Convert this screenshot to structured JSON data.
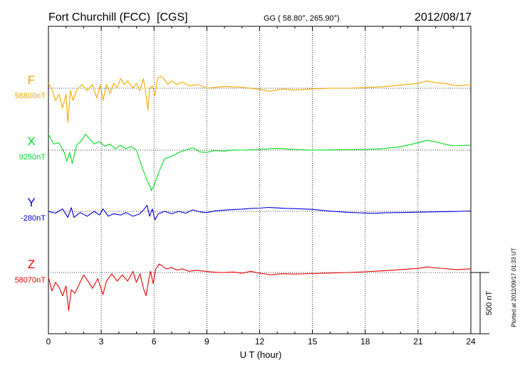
{
  "header": {
    "station": "Fort Churchill (FCC)  [CGS]",
    "coords": "GG ( 58.80°, 265.90°)",
    "date": "2012/08/17"
  },
  "plotted_note": "Plotted at 2012/09/17 01:33 UT",
  "chart_data": {
    "type": "line",
    "xlabel": "U T (hour)",
    "xlim": [
      0,
      24
    ],
    "x_ticks": [
      0,
      3,
      6,
      9,
      12,
      15,
      18,
      21,
      24
    ],
    "x_tick_labels": [
      "0",
      "3",
      "6",
      "9",
      "12",
      "15",
      "18",
      "21",
      "24"
    ],
    "scale_bar": {
      "value": 500,
      "label": "500 nT"
    },
    "grid": true,
    "series": [
      {
        "name": "F",
        "baseline_label": "58800nT",
        "baseline": 58800,
        "color": "#f5a800",
        "points": [
          [
            0,
            58840
          ],
          [
            0.2,
            58790
          ],
          [
            0.4,
            58700
          ],
          [
            0.6,
            58750
          ],
          [
            0.8,
            58640
          ],
          [
            1.0,
            58750
          ],
          [
            1.1,
            58520
          ],
          [
            1.25,
            58780
          ],
          [
            1.4,
            58700
          ],
          [
            1.6,
            58780
          ],
          [
            1.9,
            58830
          ],
          [
            2.2,
            58780
          ],
          [
            2.5,
            58830
          ],
          [
            2.75,
            58720
          ],
          [
            2.95,
            58830
          ],
          [
            3.1,
            58700
          ],
          [
            3.3,
            58830
          ],
          [
            3.5,
            58760
          ],
          [
            3.7,
            58840
          ],
          [
            3.9,
            58800
          ],
          [
            4.1,
            58880
          ],
          [
            4.3,
            58830
          ],
          [
            4.5,
            58860
          ],
          [
            4.8,
            58800
          ],
          [
            5.0,
            58840
          ],
          [
            5.2,
            58780
          ],
          [
            5.4,
            58880
          ],
          [
            5.55,
            58740
          ],
          [
            5.65,
            58620
          ],
          [
            5.75,
            58800
          ],
          [
            5.9,
            58820
          ],
          [
            6.05,
            58740
          ],
          [
            6.2,
            58880
          ],
          [
            6.4,
            58900
          ],
          [
            6.6,
            58870
          ],
          [
            6.8,
            58830
          ],
          [
            7.0,
            58860
          ],
          [
            7.3,
            58830
          ],
          [
            7.6,
            58850
          ],
          [
            8.0,
            58820
          ],
          [
            8.5,
            58830
          ],
          [
            9.0,
            58800
          ],
          [
            10.0,
            58815
          ],
          [
            11.0,
            58808
          ],
          [
            12.0,
            58790
          ],
          [
            12.6,
            58775
          ],
          [
            13.3,
            58795
          ],
          [
            14.0,
            58785
          ],
          [
            15.0,
            58795
          ],
          [
            16.0,
            58800
          ],
          [
            17.0,
            58800
          ],
          [
            18.0,
            58805
          ],
          [
            19.0,
            58812
          ],
          [
            20.0,
            58825
          ],
          [
            21.0,
            58840
          ],
          [
            21.5,
            58860
          ],
          [
            22.0,
            58845
          ],
          [
            22.5,
            58840
          ],
          [
            23.2,
            58820
          ],
          [
            24.0,
            58828
          ]
        ]
      },
      {
        "name": "X",
        "baseline_label": "9250nT",
        "baseline": 9250,
        "color": "#00dd22",
        "points": [
          [
            0,
            9380
          ],
          [
            0.3,
            9300
          ],
          [
            0.6,
            9310
          ],
          [
            0.9,
            9230
          ],
          [
            1.05,
            9160
          ],
          [
            1.2,
            9230
          ],
          [
            1.35,
            9140
          ],
          [
            1.6,
            9290
          ],
          [
            1.9,
            9330
          ],
          [
            2.1,
            9380
          ],
          [
            2.3,
            9350
          ],
          [
            2.6,
            9300
          ],
          [
            2.9,
            9320
          ],
          [
            3.2,
            9280
          ],
          [
            3.5,
            9300
          ],
          [
            3.8,
            9260
          ],
          [
            4.1,
            9290
          ],
          [
            4.4,
            9260
          ],
          [
            4.7,
            9280
          ],
          [
            5.0,
            9250
          ],
          [
            5.2,
            9160
          ],
          [
            5.45,
            9060
          ],
          [
            5.6,
            9000
          ],
          [
            5.75,
            8960
          ],
          [
            5.85,
            8920
          ],
          [
            6.0,
            8960
          ],
          [
            6.1,
            9000
          ],
          [
            6.3,
            9080
          ],
          [
            6.6,
            9180
          ],
          [
            7.0,
            9200
          ],
          [
            7.4,
            9230
          ],
          [
            7.8,
            9250
          ],
          [
            8.2,
            9270
          ],
          [
            8.6,
            9235
          ],
          [
            9.0,
            9232
          ],
          [
            9.5,
            9248
          ],
          [
            10.0,
            9242
          ],
          [
            10.5,
            9252
          ],
          [
            11.0,
            9250
          ],
          [
            12.0,
            9256
          ],
          [
            13.0,
            9265
          ],
          [
            14.0,
            9255
          ],
          [
            15.0,
            9250
          ],
          [
            16.0,
            9252
          ],
          [
            17.0,
            9254
          ],
          [
            18.0,
            9256
          ],
          [
            19.0,
            9262
          ],
          [
            20.0,
            9278
          ],
          [
            21.0,
            9310
          ],
          [
            21.5,
            9330
          ],
          [
            22.0,
            9318
          ],
          [
            22.5,
            9300
          ],
          [
            23.0,
            9285
          ],
          [
            24.0,
            9290
          ]
        ]
      },
      {
        "name": "Y",
        "baseline_label": "-280nT",
        "baseline": -280,
        "color": "#0000dd",
        "points": [
          [
            0,
            -280
          ],
          [
            0.4,
            -295
          ],
          [
            0.8,
            -260
          ],
          [
            1.1,
            -330
          ],
          [
            1.3,
            -250
          ],
          [
            1.45,
            -330
          ],
          [
            1.8,
            -290
          ],
          [
            2.2,
            -320
          ],
          [
            2.6,
            -280
          ],
          [
            2.9,
            -310
          ],
          [
            3.1,
            -260
          ],
          [
            3.4,
            -320
          ],
          [
            3.7,
            -300
          ],
          [
            4.1,
            -310
          ],
          [
            4.4,
            -290
          ],
          [
            4.8,
            -320
          ],
          [
            5.2,
            -300
          ],
          [
            5.45,
            -260
          ],
          [
            5.6,
            -230
          ],
          [
            5.75,
            -320
          ],
          [
            5.9,
            -260
          ],
          [
            6.05,
            -350
          ],
          [
            6.25,
            -300
          ],
          [
            6.6,
            -280
          ],
          [
            7.0,
            -300
          ],
          [
            7.4,
            -280
          ],
          [
            7.8,
            -295
          ],
          [
            8.2,
            -268
          ],
          [
            8.6,
            -285
          ],
          [
            9.0,
            -290
          ],
          [
            9.5,
            -276
          ],
          [
            10.0,
            -270
          ],
          [
            10.5,
            -265
          ],
          [
            11.0,
            -262
          ],
          [
            11.5,
            -256
          ],
          [
            12.0,
            -254
          ],
          [
            12.5,
            -248
          ],
          [
            13.0,
            -252
          ],
          [
            13.5,
            -256
          ],
          [
            14.0,
            -258
          ],
          [
            15.0,
            -264
          ],
          [
            15.5,
            -272
          ],
          [
            16.0,
            -278
          ],
          [
            17.0,
            -288
          ],
          [
            18.0,
            -294
          ],
          [
            18.5,
            -296
          ],
          [
            19.0,
            -292
          ],
          [
            20.0,
            -290
          ],
          [
            21.0,
            -287
          ],
          [
            22.0,
            -284
          ],
          [
            23.0,
            -282
          ],
          [
            24.0,
            -277
          ]
        ]
      },
      {
        "name": "Z",
        "baseline_label": "58070nT",
        "baseline": 58070,
        "color": "#ee0000",
        "points": [
          [
            0,
            58030
          ],
          [
            0.2,
            57920
          ],
          [
            0.4,
            57990
          ],
          [
            0.6,
            57950
          ],
          [
            0.8,
            57880
          ],
          [
            1.0,
            57960
          ],
          [
            1.15,
            57760
          ],
          [
            1.3,
            57930
          ],
          [
            1.5,
            57900
          ],
          [
            1.8,
            57990
          ],
          [
            2.0,
            58050
          ],
          [
            2.3,
            57990
          ],
          [
            2.5,
            57940
          ],
          [
            2.8,
            58020
          ],
          [
            3.1,
            57890
          ],
          [
            3.3,
            58000
          ],
          [
            3.6,
            58060
          ],
          [
            3.9,
            58000
          ],
          [
            4.2,
            58050
          ],
          [
            4.5,
            58000
          ],
          [
            4.8,
            58080
          ],
          [
            5.0,
            57990
          ],
          [
            5.2,
            58060
          ],
          [
            5.4,
            57940
          ],
          [
            5.55,
            57880
          ],
          [
            5.7,
            58010
          ],
          [
            5.8,
            58080
          ],
          [
            5.95,
            57980
          ],
          [
            6.1,
            58100
          ],
          [
            6.3,
            58140
          ],
          [
            6.5,
            58120
          ],
          [
            6.7,
            58100
          ],
          [
            7.0,
            58110
          ],
          [
            7.3,
            58090
          ],
          [
            7.6,
            58100
          ],
          [
            8.0,
            58080
          ],
          [
            8.4,
            58088
          ],
          [
            8.8,
            58082
          ],
          [
            9.2,
            58075
          ],
          [
            9.8,
            58070
          ],
          [
            10.5,
            58074
          ],
          [
            11.0,
            58065
          ],
          [
            11.5,
            58080
          ],
          [
            12.0,
            58064
          ],
          [
            12.6,
            58052
          ],
          [
            13.3,
            58060
          ],
          [
            14.0,
            58057
          ],
          [
            15.0,
            58061
          ],
          [
            16.0,
            58066
          ],
          [
            17.0,
            58070
          ],
          [
            18.0,
            58076
          ],
          [
            19.0,
            58084
          ],
          [
            20.0,
            58094
          ],
          [
            21.0,
            58104
          ],
          [
            21.5,
            58116
          ],
          [
            22.0,
            58108
          ],
          [
            22.5,
            58102
          ],
          [
            23.2,
            58094
          ],
          [
            24.0,
            58100
          ]
        ]
      }
    ]
  }
}
